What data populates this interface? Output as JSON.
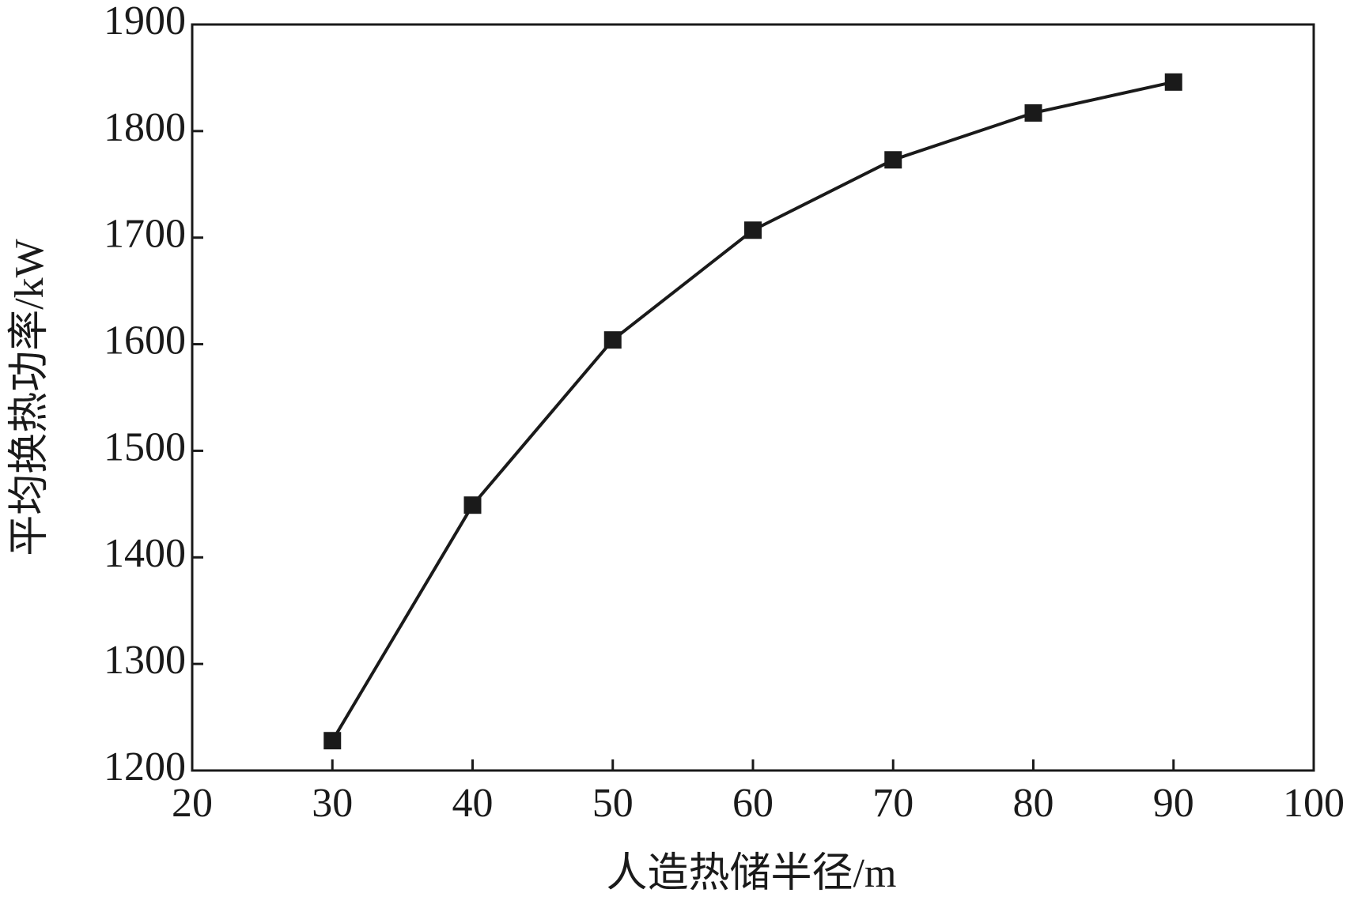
{
  "chart_data": {
    "type": "line",
    "x_label": "人造热储半径/m",
    "y_label": "平均换热功率/kW",
    "x": [
      30,
      40,
      50,
      60,
      70,
      80,
      90
    ],
    "values": [
      1228,
      1449,
      1604,
      1707,
      1773,
      1817,
      1846
    ],
    "color": "#1a1a1a",
    "marker": "square",
    "xlim": [
      20,
      100
    ],
    "xticks": [
      20,
      30,
      40,
      50,
      60,
      70,
      80,
      90,
      100
    ],
    "ylim": [
      1200,
      1900
    ],
    "yticks": [
      1200,
      1300,
      1400,
      1500,
      1600,
      1700,
      1800,
      1900
    ],
    "grid": false
  }
}
